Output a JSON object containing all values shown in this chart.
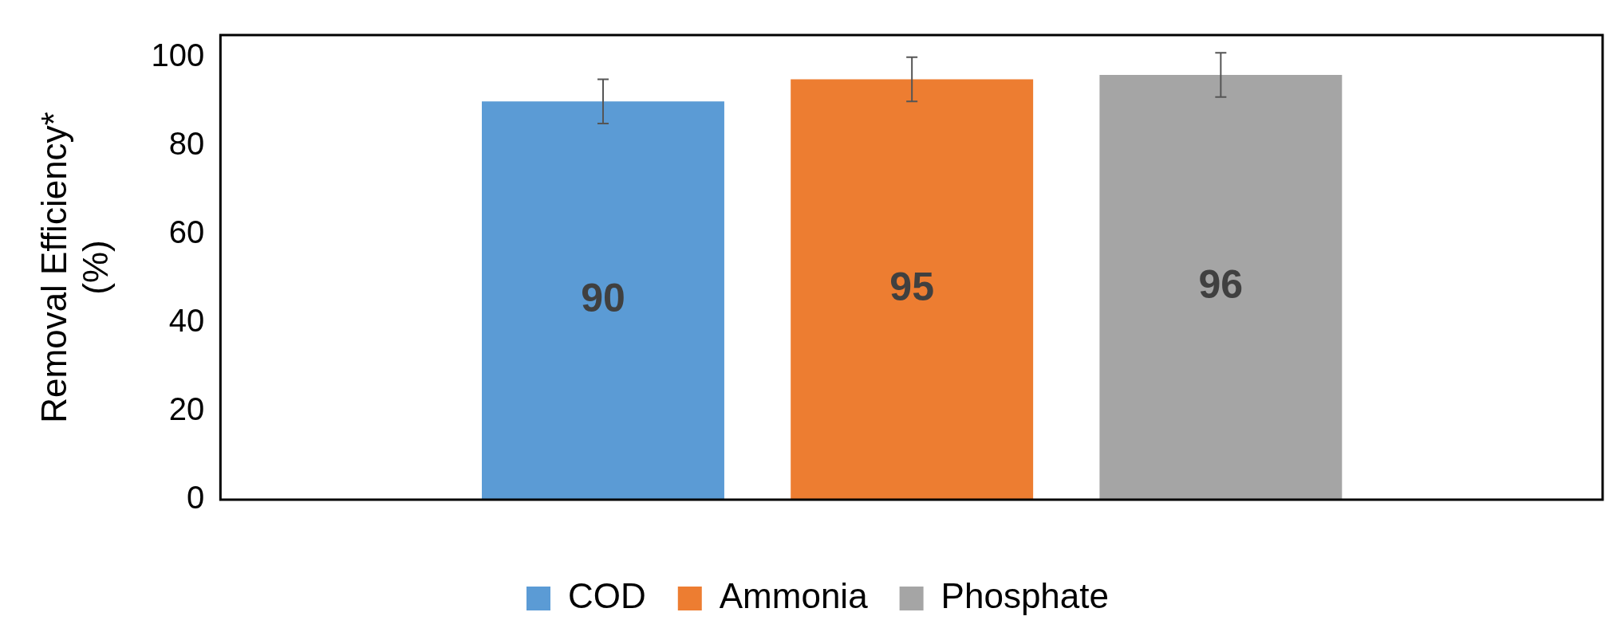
{
  "chart_data": {
    "type": "bar",
    "ylabel": "Removal Efficiency* (%)",
    "categories": [
      null
    ],
    "series": [
      {
        "name": "COD",
        "color": "#5b9bd5",
        "values": [
          90
        ],
        "errors": [
          5
        ]
      },
      {
        "name": "Ammonia",
        "color": "#ed7d31",
        "values": [
          95
        ],
        "errors": [
          5
        ]
      },
      {
        "name": "Phosphate",
        "color": "#a5a5a5",
        "values": [
          96
        ],
        "errors": [
          5
        ]
      }
    ],
    "ylim": [
      0,
      105
    ],
    "yticks": [
      0,
      20,
      40,
      60,
      80,
      100
    ],
    "grid": false,
    "legend": "bottom",
    "data_labels": true
  }
}
